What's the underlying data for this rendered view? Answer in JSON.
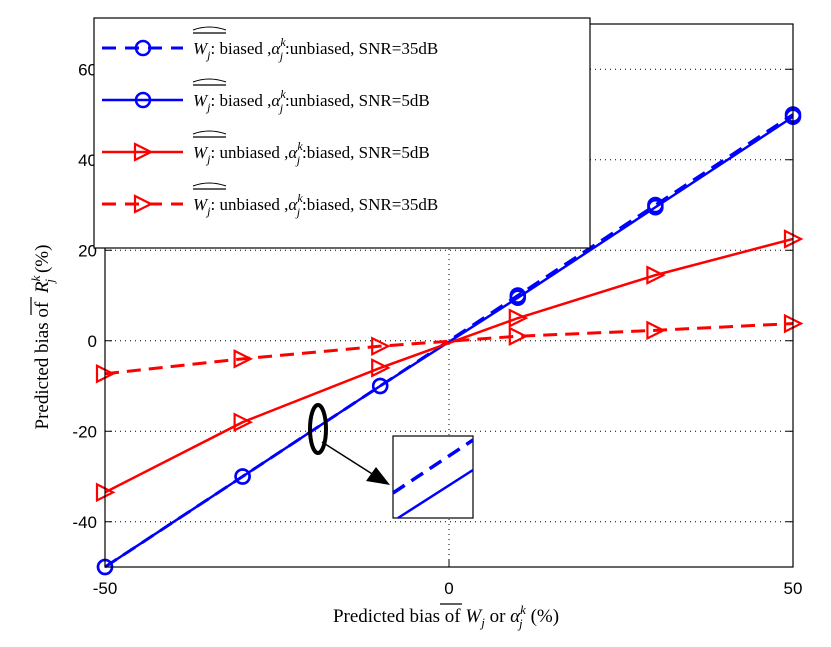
{
  "chart_data": {
    "type": "line",
    "xlabel": "Predicted bias of W̄j or αjk (%)",
    "ylabel": "Predicted bias of R̄jk (%)",
    "xlim": [
      -50,
      50
    ],
    "ylim": [
      -50,
      70
    ],
    "xticks": [
      "-50",
      "0",
      "50"
    ],
    "yticks": [
      "-40",
      "-20",
      "0",
      "20",
      "40",
      "60"
    ],
    "grid": true,
    "legend_position": "top-left",
    "series": [
      {
        "name": "W̄j: biased ,αjk:unbiased, SNR=35dB",
        "color": "#0000ff",
        "dash": true,
        "marker": "circle",
        "x": [
          -50,
          -30,
          -10,
          10,
          30,
          50
        ],
        "y": [
          -50,
          -30,
          -10,
          10,
          30,
          50
        ]
      },
      {
        "name": "W̄j: biased ,αjk:unbiased, SNR=5dB",
        "color": "#0000ff",
        "dash": false,
        "marker": "circle",
        "x": [
          -50,
          -30,
          -10,
          10,
          30,
          50
        ],
        "y": [
          -50,
          -30,
          -10,
          9.5,
          29.5,
          49.5
        ]
      },
      {
        "name": "W̄j: unbiased ,αjk:biased, SNR=5dB",
        "color": "#ff0000",
        "dash": false,
        "marker": "triangle-right",
        "x": [
          -50,
          -30,
          -10,
          10,
          30,
          50
        ],
        "y": [
          -33.5,
          -18,
          -6,
          5,
          14.5,
          22.5
        ]
      },
      {
        "name": "W̄j: unbiased ,αjk:biased, SNR=35dB",
        "color": "#ff0000",
        "dash": true,
        "marker": "triangle-right",
        "x": [
          -50,
          -30,
          -10,
          10,
          30,
          50
        ],
        "y": [
          -7.3,
          -4,
          -1.2,
          1,
          2.3,
          3.8
        ]
      }
    ]
  }
}
